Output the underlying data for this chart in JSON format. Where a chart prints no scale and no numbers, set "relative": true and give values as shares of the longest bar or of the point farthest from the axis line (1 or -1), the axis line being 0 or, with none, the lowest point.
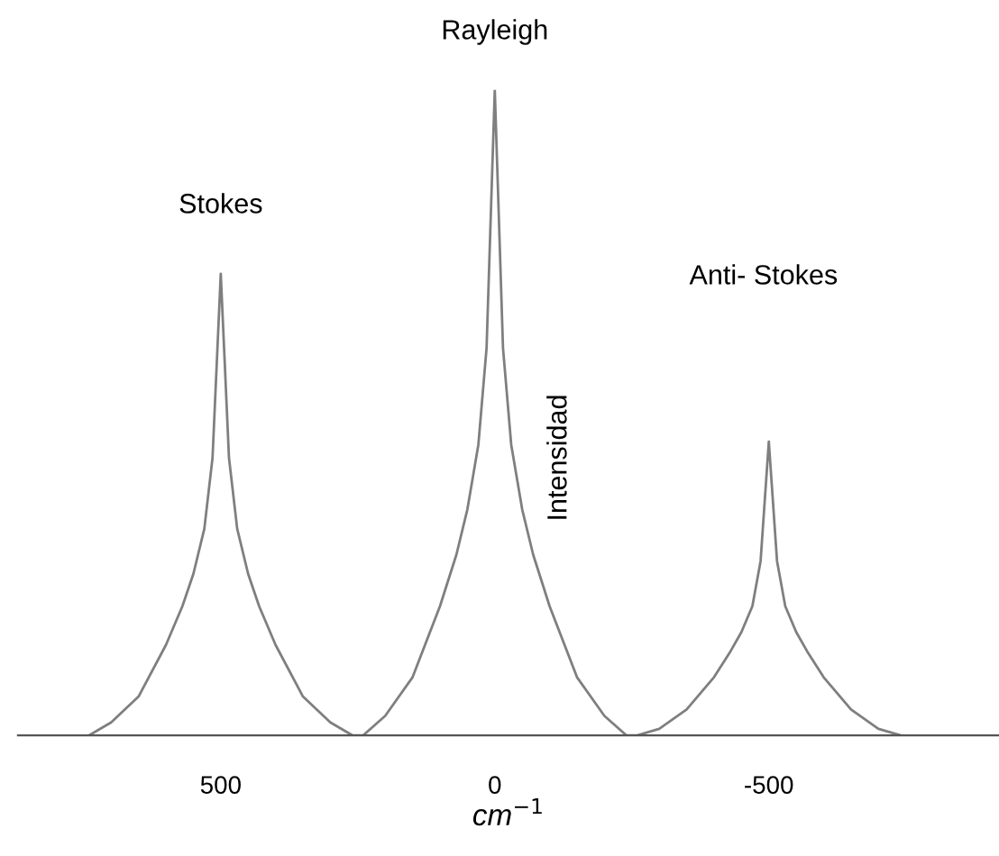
{
  "chart_data": {
    "type": "line",
    "relative": true,
    "xlabel": "cm$^{−1}$",
    "ylabel": "Intensidad",
    "xlim": [
      870,
      -920
    ],
    "xticks": [
      500,
      0,
      -500
    ],
    "marker": "none",
    "line_style": "solid",
    "series": [
      {
        "color": "#7f7f7f",
        "x": [
          740,
          700,
          650,
          600,
          570,
          550,
          530,
          515,
          500,
          485,
          470,
          450,
          430,
          400,
          350,
          300,
          260,
          240,
          200,
          150,
          100,
          70,
          50,
          30,
          15,
          0,
          -15,
          -30,
          -50,
          -70,
          -100,
          -150,
          -200,
          -240,
          -260,
          -300,
          -350,
          -400,
          -430,
          -450,
          -470,
          -485,
          -500,
          -515,
          -530,
          -550,
          -570,
          -600,
          -650,
          -700,
          -740
        ],
        "values": [
          0,
          0.02,
          0.06,
          0.14,
          0.2,
          0.25,
          0.32,
          0.43,
          0.715,
          0.43,
          0.32,
          0.25,
          0.2,
          0.14,
          0.06,
          0.02,
          0,
          0,
          0.03,
          0.09,
          0.2,
          0.28,
          0.35,
          0.45,
          0.6,
          1,
          0.6,
          0.45,
          0.35,
          0.28,
          0.2,
          0.09,
          0.03,
          0,
          0,
          0.01,
          0.04,
          0.09,
          0.13,
          0.16,
          0.2,
          0.27,
          0.455,
          0.27,
          0.2,
          0.16,
          0.13,
          0.09,
          0.04,
          0.01,
          0
        ]
      }
    ],
    "annotations": [
      {
        "text": "Stokes",
        "x": 500,
        "y": 0.715
      },
      {
        "text": "Rayleigh",
        "x": 0,
        "y": 1
      },
      "Anti- Stokes"
    ]
  }
}
